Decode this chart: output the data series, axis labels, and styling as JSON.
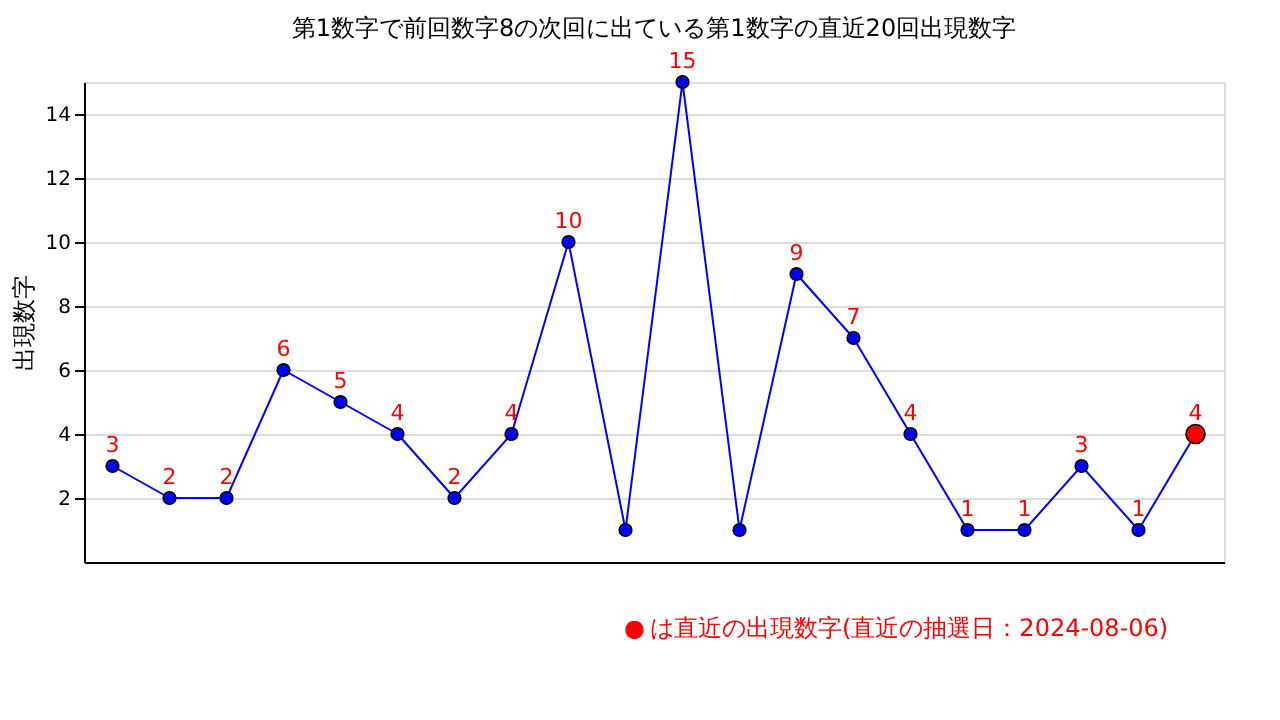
{
  "chart_data": {
    "type": "line",
    "title": "第1数字で前回数字8の次回に出ている第1数字の直近20回出現数字",
    "ylabel": "出現数字",
    "categories": [
      null,
      null,
      null,
      null,
      null,
      null,
      null,
      null,
      null,
      null,
      null,
      null,
      null,
      null,
      null,
      null,
      null,
      null,
      null,
      null
    ],
    "series": [
      {
        "color": "#0000ff",
        "values": [
          3,
          2,
          2,
          6,
          5,
          4,
          2,
          4,
          10,
          1,
          15,
          1,
          9,
          7,
          4,
          1,
          1,
          3,
          1,
          4
        ],
        "colors": [
          "#0000ff",
          "#0000ff",
          "#0000ff",
          "#0000ff",
          "#0000ff",
          "#0000ff",
          "#0000ff",
          "#0000ff",
          "#0000ff",
          "#0000ff",
          "#0000ff",
          "#0000ff",
          "#0000ff",
          "#0000ff",
          "#0000ff",
          "#0000ff",
          "#0000ff",
          "#0000ff",
          "#0000ff",
          "#ff0000"
        ],
        "value_labels": [
          "3",
          "2",
          "2",
          "6",
          "5",
          "4",
          "2",
          "4",
          "10",
          null,
          "15",
          null,
          "9",
          "7",
          "4",
          "1",
          "1",
          "3",
          "1",
          "4"
        ]
      }
    ],
    "ylim": [
      0,
      15
    ],
    "yticks": [
      2,
      4,
      6,
      8,
      10,
      12,
      14
    ],
    "grid": "y",
    "marker": "circle",
    "tick_labels": "y",
    "annotations": [
      "●は直近の出現数字(直近の抽選日：2024-08-06)"
    ]
  }
}
